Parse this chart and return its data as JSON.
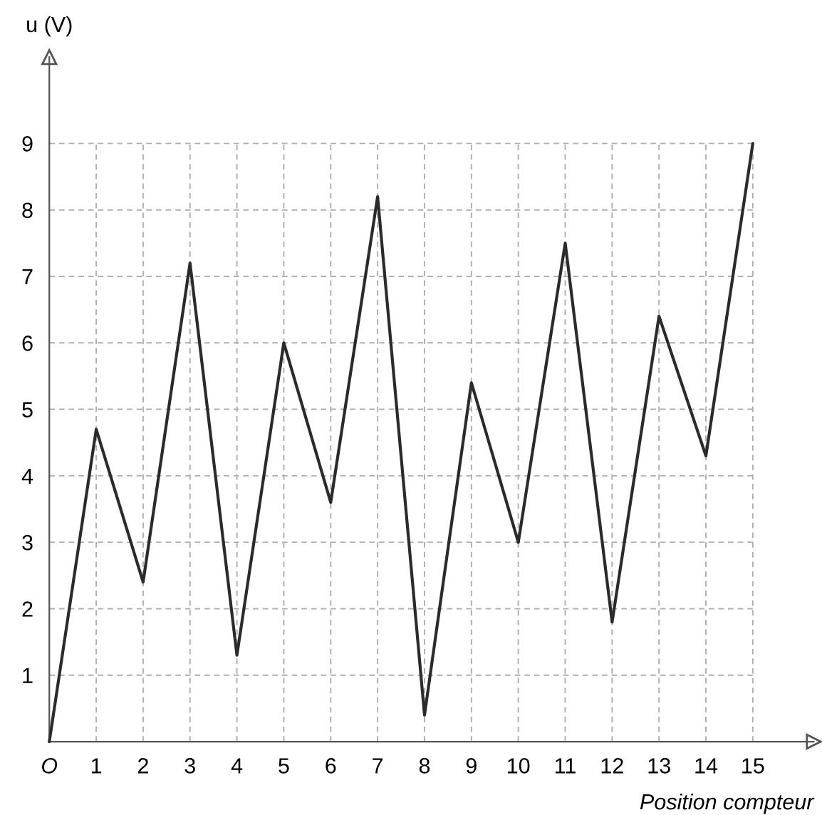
{
  "chart_data": {
    "type": "line",
    "xlabel": "Position compteur",
    "ylabel": "u (V)",
    "x": [
      0,
      1,
      2,
      3,
      4,
      5,
      6,
      7,
      8,
      9,
      10,
      11,
      12,
      13,
      14,
      15
    ],
    "series": [
      {
        "color": "#2b2b2b",
        "values": [
          0,
          4.7,
          2.4,
          7.2,
          1.3,
          6.0,
          3.6,
          8.2,
          0.4,
          5.4,
          3.0,
          7.5,
          1.8,
          6.4,
          4.3,
          9.0
        ]
      }
    ],
    "xlim": [
      0,
      16.3
    ],
    "ylim": [
      0,
      10.3
    ],
    "xticks": [
      {
        "value": 0,
        "label": "O"
      },
      1,
      2,
      3,
      4,
      5,
      6,
      7,
      8,
      9,
      10,
      11,
      12,
      13,
      14,
      15
    ],
    "yticks": [
      1,
      2,
      3,
      4,
      5,
      6,
      7,
      8,
      9
    ],
    "grid": true,
    "marker": "none",
    "line_style": "solid",
    "legend": false
  }
}
